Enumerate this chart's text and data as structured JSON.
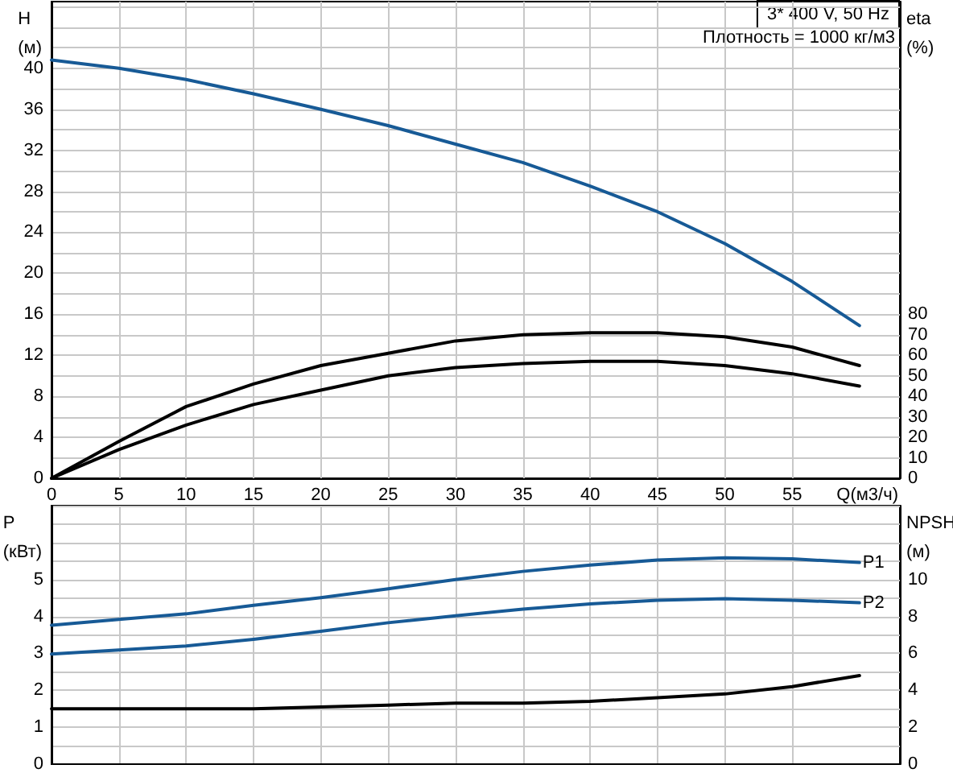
{
  "chart_data": [
    {
      "type": "line",
      "xlabel": "Q(м3/ч)",
      "ylabel": "H (м)",
      "y2label": "eta (%)",
      "annotations": [
        "3* 400 V, 50 Hz",
        "Плотность = 1000 кг/м3"
      ],
      "x": [
        0,
        5,
        10,
        15,
        20,
        25,
        30,
        35,
        40,
        45,
        50,
        55,
        60
      ],
      "series": [
        {
          "color": "#175a96",
          "values": [
            40.8,
            40,
            38.9,
            37.5,
            36,
            34.4,
            32.6,
            30.8,
            28.5,
            26,
            22.9,
            19.2,
            14.9
          ]
        },
        {
          "color": "#000000",
          "axis": "y2",
          "values": [
            0,
            18,
            35,
            46,
            55,
            61,
            67,
            70,
            71,
            71,
            69,
            64,
            55
          ]
        },
        {
          "color": "#000000",
          "axis": "y2",
          "values": [
            0,
            14,
            26,
            36,
            43,
            50,
            54,
            56,
            57,
            57,
            55,
            51,
            45
          ]
        }
      ],
      "xlim": [
        0,
        63
      ],
      "xticks": [
        0,
        5,
        10,
        15,
        20,
        25,
        30,
        35,
        40,
        45,
        50,
        55
      ],
      "ylim": [
        0,
        46.5
      ],
      "yticks": [
        0,
        {
          "value": 2,
          "label": null
        },
        4,
        {
          "value": 6,
          "label": null
        },
        8,
        {
          "value": 10,
          "label": null
        },
        12,
        {
          "value": 14,
          "label": null
        },
        16,
        {
          "value": 18,
          "label": null
        },
        20,
        {
          "value": 22,
          "label": null
        },
        24,
        {
          "value": 26,
          "label": null
        },
        28,
        {
          "value": 30,
          "label": null
        },
        32,
        {
          "value": 34,
          "label": null
        },
        36,
        {
          "value": 38,
          "label": null
        },
        40,
        {
          "value": 42,
          "label": null
        },
        {
          "value": 44,
          "label": null
        },
        {
          "value": 46,
          "label": null
        }
      ],
      "y2lim": [
        0,
        232.5
      ],
      "y2ticks": [
        0,
        10,
        20,
        30,
        40,
        50,
        60,
        70,
        80
      ],
      "grid": true,
      "marker": "none",
      "legend": false
    },
    {
      "type": "line",
      "ylabel": "P (кВт)",
      "y2label": "NPSH (м)",
      "x": [
        0,
        5,
        10,
        15,
        20,
        25,
        30,
        35,
        40,
        45,
        50,
        55,
        60
      ],
      "series": [
        {
          "name": "P1",
          "color": "#175a96",
          "values": [
            3.76,
            3.92,
            4.07,
            4.3,
            4.51,
            4.75,
            5,
            5.22,
            5.39,
            5.53,
            5.59,
            5.56,
            5.46
          ]
        },
        {
          "name": "P2",
          "color": "#175a96",
          "values": [
            2.98,
            3.09,
            3.2,
            3.38,
            3.6,
            3.83,
            4.02,
            4.2,
            4.34,
            4.44,
            4.48,
            4.44,
            4.37
          ]
        },
        {
          "color": "#000000",
          "axis": "y2",
          "values": [
            3,
            3,
            3,
            3,
            3.1,
            3.2,
            3.3,
            3.3,
            3.4,
            3.6,
            3.8,
            4.2,
            4.8
          ]
        }
      ],
      "xlim": [
        0,
        63
      ],
      "xticks": [
        0,
        5,
        10,
        15,
        20,
        25,
        30,
        35,
        40,
        45,
        50,
        55
      ],
      "ylim": [
        0,
        7
      ],
      "yticks": [
        0,
        {
          "value": 0.5,
          "label": null
        },
        1,
        {
          "value": 1.5,
          "label": null
        },
        2,
        {
          "value": 2.5,
          "label": null
        },
        3,
        {
          "value": 3.5,
          "label": null
        },
        4,
        {
          "value": 4.5,
          "label": null
        },
        5,
        {
          "value": 5.5,
          "label": null
        },
        {
          "value": 6,
          "label": null
        },
        {
          "value": 6.5,
          "label": null
        },
        {
          "value": 7,
          "label": null
        }
      ],
      "y2lim": [
        0,
        14
      ],
      "y2ticks": [
        0,
        2,
        4,
        6,
        8,
        10
      ],
      "tick_labels": "y",
      "grid": true,
      "marker": "none",
      "legend": false
    }
  ]
}
